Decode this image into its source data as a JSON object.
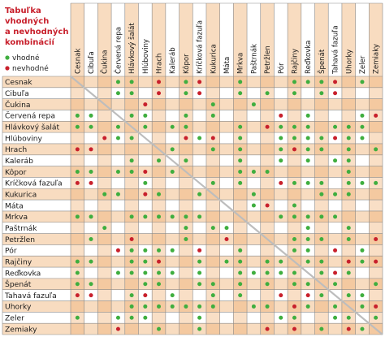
{
  "chart_data": {
    "type": "table",
    "title_lines": [
      "Tabuľka",
      "vhodných",
      "a nevhodných",
      "kombinácií"
    ],
    "legend": [
      {
        "label": "vhodné",
        "color": "#3fae3f"
      },
      {
        "label": "nevhodné",
        "color": "#c8202c"
      }
    ],
    "colors": {
      "row_band_a": "#f8dcc0",
      "row_band_b": "#ffffff",
      "col_band_dark": "#f3c79c",
      "grid": "#8a8a8a",
      "diagonal": "#bdbdbd",
      "good": "#3fae3f",
      "bad": "#c8202c",
      "title": "#c8202c"
    },
    "plants": [
      "Cesnak",
      "Cibuľa",
      "Čukina",
      "Červená repa",
      "Hlávkový šalát",
      "Hlúboviny",
      "Hrach",
      "Kaleráb",
      "Kôpor",
      "Kríčková fazuľa",
      "Kukurica",
      "Máta",
      "Mrkva",
      "Paštrnák",
      "Petržlen",
      "Pór",
      "Rajčiny",
      "Reďkovka",
      "Špenát",
      "Tahavá fazuľa",
      "Uhorky",
      "Zeler",
      "Zemiaky"
    ],
    "good_pairs": [
      [
        0,
        3
      ],
      [
        0,
        4
      ],
      [
        0,
        8
      ],
      [
        0,
        12
      ],
      [
        0,
        16
      ],
      [
        0,
        17
      ],
      [
        0,
        18
      ],
      [
        0,
        21
      ],
      [
        1,
        3
      ],
      [
        1,
        4
      ],
      [
        1,
        8
      ],
      [
        1,
        12
      ],
      [
        1,
        14
      ],
      [
        1,
        16
      ],
      [
        1,
        18
      ],
      [
        2,
        10
      ],
      [
        2,
        13
      ],
      [
        3,
        4
      ],
      [
        3,
        5
      ],
      [
        3,
        8
      ],
      [
        3,
        10
      ],
      [
        3,
        17
      ],
      [
        3,
        21
      ],
      [
        4,
        5
      ],
      [
        4,
        7
      ],
      [
        4,
        8
      ],
      [
        4,
        12
      ],
      [
        4,
        15
      ],
      [
        4,
        16
      ],
      [
        4,
        17
      ],
      [
        4,
        19
      ],
      [
        4,
        20
      ],
      [
        4,
        21
      ],
      [
        5,
        9
      ],
      [
        5,
        12
      ],
      [
        5,
        15
      ],
      [
        5,
        16
      ],
      [
        5,
        17
      ],
      [
        5,
        18
      ],
      [
        5,
        20
      ],
      [
        5,
        21
      ],
      [
        6,
        7
      ],
      [
        6,
        10
      ],
      [
        6,
        12
      ],
      [
        6,
        15
      ],
      [
        6,
        17
      ],
      [
        6,
        18
      ],
      [
        6,
        20
      ],
      [
        6,
        22
      ],
      [
        7,
        8
      ],
      [
        7,
        12
      ],
      [
        7,
        15
      ],
      [
        7,
        17
      ],
      [
        7,
        19
      ],
      [
        7,
        20
      ],
      [
        8,
        12
      ],
      [
        8,
        13
      ],
      [
        8,
        14
      ],
      [
        8,
        20
      ],
      [
        9,
        10
      ],
      [
        9,
        12
      ],
      [
        9,
        16
      ],
      [
        9,
        17
      ],
      [
        9,
        18
      ],
      [
        9,
        20
      ],
      [
        9,
        21
      ],
      [
        9,
        22
      ],
      [
        10,
        13
      ],
      [
        10,
        18
      ],
      [
        10,
        19
      ],
      [
        10,
        20
      ],
      [
        11,
        13
      ],
      [
        11,
        16
      ],
      [
        12,
        15
      ],
      [
        12,
        16
      ],
      [
        12,
        17
      ],
      [
        12,
        18
      ],
      [
        12,
        19
      ],
      [
        13,
        17
      ],
      [
        13,
        20
      ],
      [
        14,
        16
      ],
      [
        14,
        17
      ],
      [
        14,
        18
      ],
      [
        14,
        20
      ],
      [
        15,
        16
      ],
      [
        15,
        17
      ],
      [
        15,
        21
      ],
      [
        16,
        17
      ],
      [
        16,
        18
      ],
      [
        16,
        21
      ],
      [
        17,
        18
      ],
      [
        17,
        20
      ],
      [
        18,
        19
      ],
      [
        18,
        22
      ],
      [
        19,
        20
      ],
      [
        19,
        21
      ],
      [
        20,
        21
      ],
      [
        21,
        22
      ]
    ],
    "bad_pairs": [
      [
        0,
        6
      ],
      [
        0,
        9
      ],
      [
        0,
        19
      ],
      [
        1,
        6
      ],
      [
        1,
        9
      ],
      [
        1,
        19
      ],
      [
        2,
        5
      ],
      [
        3,
        15
      ],
      [
        3,
        22
      ],
      [
        4,
        14
      ],
      [
        5,
        8
      ],
      [
        5,
        10
      ],
      [
        5,
        19
      ],
      [
        6,
        16
      ],
      [
        9,
        15
      ],
      [
        11,
        14
      ],
      [
        14,
        22
      ],
      [
        15,
        19
      ],
      [
        16,
        20
      ],
      [
        16,
        22
      ],
      [
        17,
        19
      ],
      [
        20,
        22
      ]
    ]
  }
}
